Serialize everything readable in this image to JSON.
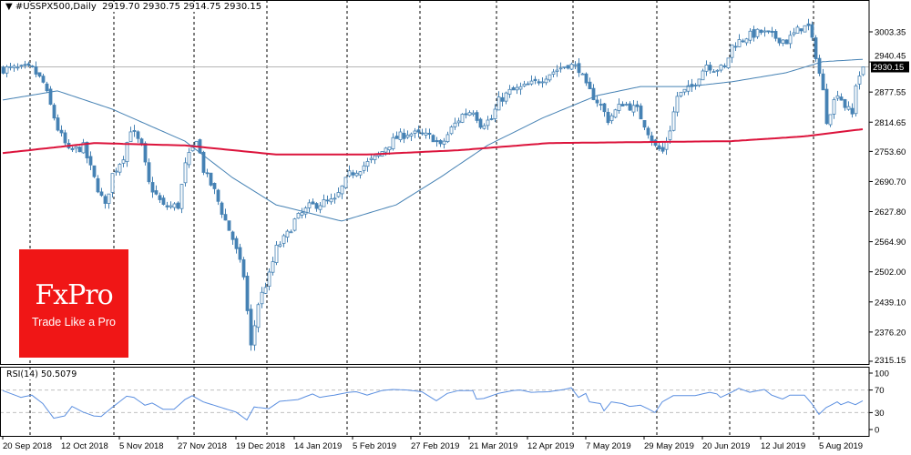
{
  "header": {
    "menu_icon": "triangle-down-icon",
    "symbol": "#USSPX500,Daily",
    "open": "2919.70",
    "high": "2930.75",
    "low": "2914.75",
    "close": "2930.15"
  },
  "logo": {
    "brand": "FxPro",
    "tagline": "Trade Like a Pro"
  },
  "colors": {
    "candle": "#4682b4",
    "ma_fast": "#4682b4",
    "ma_slow": "#dc143c",
    "rsi": "#5b8fe0",
    "logo_bg": "#f01616"
  },
  "chart_data": [
    {
      "type": "candlestick",
      "title": "#USSPX500,Daily",
      "bars": 237,
      "ylim": [
        2309.4,
        3069.9
      ],
      "yticks": [
        "3003.35",
        "2940.45",
        "2877.55",
        "2814.65",
        "2753.60",
        "2690.70",
        "2627.80",
        "2564.90",
        "2502.00",
        "2439.10",
        "2376.20",
        "2315.15"
      ],
      "current_price": "2930.15",
      "close_keypoints": [
        [
          0,
          2926
        ],
        [
          8,
          2926
        ],
        [
          11,
          2897
        ],
        [
          15,
          2801
        ],
        [
          18,
          2753
        ],
        [
          22,
          2763
        ],
        [
          25,
          2696
        ],
        [
          28,
          2638
        ],
        [
          30,
          2705
        ],
        [
          33,
          2744
        ],
        [
          35,
          2801
        ],
        [
          38,
          2763
        ],
        [
          40,
          2686
        ],
        [
          44,
          2638
        ],
        [
          48,
          2640
        ],
        [
          50,
          2724
        ],
        [
          53,
          2782
        ],
        [
          55,
          2715
        ],
        [
          58,
          2670
        ],
        [
          60,
          2628
        ],
        [
          63,
          2571
        ],
        [
          66,
          2494
        ],
        [
          68,
          2345
        ],
        [
          70,
          2436
        ],
        [
          73,
          2494
        ],
        [
          75,
          2551
        ],
        [
          78,
          2580
        ],
        [
          80,
          2609
        ],
        [
          84,
          2638
        ],
        [
          88,
          2647
        ],
        [
          91,
          2650
        ],
        [
          95,
          2705
        ],
        [
          99,
          2724
        ],
        [
          103,
          2744
        ],
        [
          105,
          2763
        ],
        [
          108,
          2782
        ],
        [
          111,
          2792
        ],
        [
          115,
          2787
        ],
        [
          118,
          2782
        ],
        [
          120,
          2763
        ],
        [
          123,
          2801
        ],
        [
          126,
          2830
        ],
        [
          129,
          2840
        ],
        [
          131,
          2811
        ],
        [
          134,
          2820
        ],
        [
          136,
          2859
        ],
        [
          139,
          2878
        ],
        [
          143,
          2888
        ],
        [
          146,
          2897
        ],
        [
          150,
          2917
        ],
        [
          155,
          2936
        ],
        [
          158,
          2927
        ],
        [
          160,
          2888
        ],
        [
          164,
          2849
        ],
        [
          166,
          2820
        ],
        [
          170,
          2855
        ],
        [
          174,
          2840
        ],
        [
          176,
          2811
        ],
        [
          179,
          2763
        ],
        [
          181,
          2753
        ],
        [
          183,
          2801
        ],
        [
          185,
          2869
        ],
        [
          189,
          2888
        ],
        [
          193,
          2936
        ],
        [
          195,
          2927
        ],
        [
          198,
          2927
        ],
        [
          200,
          2974
        ],
        [
          204,
          2994
        ],
        [
          208,
          3003
        ],
        [
          211,
          2994
        ],
        [
          215,
          2984
        ],
        [
          219,
          3013
        ],
        [
          221,
          3013
        ],
        [
          223,
          2955
        ],
        [
          225,
          2878
        ],
        [
          226,
          2820
        ],
        [
          229,
          2878
        ],
        [
          231,
          2849
        ],
        [
          233,
          2830
        ],
        [
          234,
          2895
        ],
        [
          236,
          2930.15
        ]
      ],
      "ma_fast": [
        [
          0,
          2861
        ],
        [
          15,
          2880
        ],
        [
          30,
          2842
        ],
        [
          50,
          2775
        ],
        [
          63,
          2699
        ],
        [
          75,
          2642
        ],
        [
          93,
          2608
        ],
        [
          108,
          2642
        ],
        [
          120,
          2699
        ],
        [
          133,
          2766
        ],
        [
          148,
          2823
        ],
        [
          163,
          2870
        ],
        [
          175,
          2889
        ],
        [
          188,
          2889
        ],
        [
          200,
          2899
        ],
        [
          215,
          2918
        ],
        [
          225,
          2941
        ],
        [
          236,
          2946
        ]
      ],
      "ma_slow": [
        [
          0,
          2750
        ],
        [
          25,
          2771
        ],
        [
          50,
          2766
        ],
        [
          75,
          2747
        ],
        [
          100,
          2747
        ],
        [
          125,
          2756
        ],
        [
          150,
          2771
        ],
        [
          175,
          2773
        ],
        [
          200,
          2775
        ],
        [
          220,
          2785
        ],
        [
          236,
          2800
        ]
      ],
      "x_labels": [
        {
          "bar": 0,
          "label": "20 Sep 2018"
        },
        {
          "bar": 16,
          "label": "12 Oct 2018"
        },
        {
          "bar": 32,
          "label": "5 Nov 2018"
        },
        {
          "bar": 48,
          "label": "27 Nov 2018"
        },
        {
          "bar": 64,
          "label": "19 Dec 2018"
        },
        {
          "bar": 80,
          "label": "14 Jan 2019"
        },
        {
          "bar": 96,
          "label": "5 Feb 2019"
        },
        {
          "bar": 112,
          "label": "27 Feb 2019"
        },
        {
          "bar": 128,
          "label": "21 Mar 2019"
        },
        {
          "bar": 144,
          "label": "12 Apr 2019"
        },
        {
          "bar": 160,
          "label": "7 May 2019"
        },
        {
          "bar": 176,
          "label": "29 May 2019"
        },
        {
          "bar": 192,
          "label": "20 Jun 2019"
        },
        {
          "bar": 208,
          "label": "12 Jul 2019"
        },
        {
          "bar": 224,
          "label": "5 Aug 2019"
        }
      ],
      "separators": [
        7,
        30,
        52,
        72,
        94,
        114,
        135,
        156,
        179,
        199,
        222
      ]
    },
    {
      "type": "line",
      "title": "RSI(14) 50.5079",
      "label": "RSI(14)",
      "value": "50.5079",
      "ylim": [
        0,
        100
      ],
      "yticks": [
        "100",
        "70",
        "30",
        "0"
      ],
      "levels": [
        70,
        30
      ],
      "keypoints": [
        [
          0,
          69
        ],
        [
          5,
          57
        ],
        [
          8,
          61
        ],
        [
          11,
          46
        ],
        [
          14,
          20
        ],
        [
          17,
          24
        ],
        [
          19,
          41
        ],
        [
          22,
          31
        ],
        [
          25,
          24
        ],
        [
          27,
          23
        ],
        [
          30,
          39
        ],
        [
          34,
          59
        ],
        [
          36,
          57
        ],
        [
          39,
          43
        ],
        [
          41,
          47
        ],
        [
          44,
          36
        ],
        [
          47,
          36
        ],
        [
          50,
          53
        ],
        [
          52,
          60
        ],
        [
          55,
          49
        ],
        [
          59,
          41
        ],
        [
          64,
          31
        ],
        [
          67,
          17
        ],
        [
          69,
          40
        ],
        [
          73,
          37
        ],
        [
          76,
          50
        ],
        [
          81,
          53
        ],
        [
          85,
          63
        ],
        [
          87,
          57
        ],
        [
          91,
          61
        ],
        [
          95,
          66
        ],
        [
          97,
          67
        ],
        [
          100,
          61
        ],
        [
          104,
          69
        ],
        [
          107,
          71
        ],
        [
          111,
          70
        ],
        [
          115,
          67
        ],
        [
          119,
          51
        ],
        [
          122,
          64
        ],
        [
          125,
          69
        ],
        [
          129,
          69
        ],
        [
          130,
          54
        ],
        [
          132,
          55
        ],
        [
          136,
          64
        ],
        [
          140,
          69
        ],
        [
          142,
          70
        ],
        [
          145,
          66
        ],
        [
          150,
          67
        ],
        [
          154,
          71
        ],
        [
          156,
          74
        ],
        [
          158,
          57
        ],
        [
          160,
          64
        ],
        [
          161,
          49
        ],
        [
          164,
          46
        ],
        [
          165,
          33
        ],
        [
          167,
          49
        ],
        [
          170,
          46
        ],
        [
          172,
          41
        ],
        [
          175,
          43
        ],
        [
          177,
          37
        ],
        [
          179,
          30
        ],
        [
          181,
          49
        ],
        [
          184,
          60
        ],
        [
          190,
          60
        ],
        [
          194,
          66
        ],
        [
          196,
          63
        ],
        [
          197,
          57
        ],
        [
          200,
          66
        ],
        [
          202,
          73
        ],
        [
          205,
          66
        ],
        [
          209,
          71
        ],
        [
          211,
          61
        ],
        [
          214,
          54
        ],
        [
          216,
          61
        ],
        [
          220,
          61
        ],
        [
          222,
          46
        ],
        [
          224,
          27
        ],
        [
          226,
          39
        ],
        [
          229,
          49
        ],
        [
          230,
          44
        ],
        [
          232,
          49
        ],
        [
          234,
          44
        ],
        [
          236,
          51
        ]
      ]
    }
  ]
}
